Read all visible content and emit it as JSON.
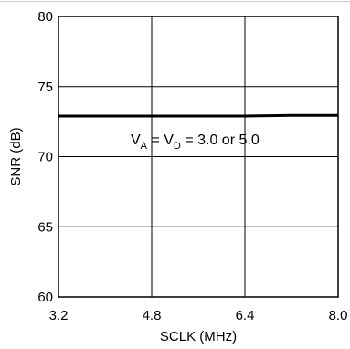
{
  "chart_data": {
    "type": "line",
    "xlabel": "SCLK (MHz)",
    "ylabel": "SNR (dB)",
    "xlim": [
      3.2,
      8.0
    ],
    "ylim": [
      60,
      80
    ],
    "x_ticks": [
      "3.2",
      "4.8",
      "6.4",
      "8.0"
    ],
    "y_ticks": [
      "60",
      "65",
      "70",
      "75",
      "80"
    ],
    "grid": true,
    "series": [
      {
        "x": [
          3.2,
          4.0,
          4.8,
          5.6,
          6.4,
          7.2,
          8.0
        ],
        "y": [
          72.9,
          72.9,
          72.9,
          72.9,
          72.9,
          72.95,
          72.95
        ]
      }
    ],
    "annotation": {
      "v1": "V",
      "sub1": "A",
      "eq1": " = V",
      "sub2": "D",
      "rest": " = 3.0 or 5.0"
    }
  }
}
